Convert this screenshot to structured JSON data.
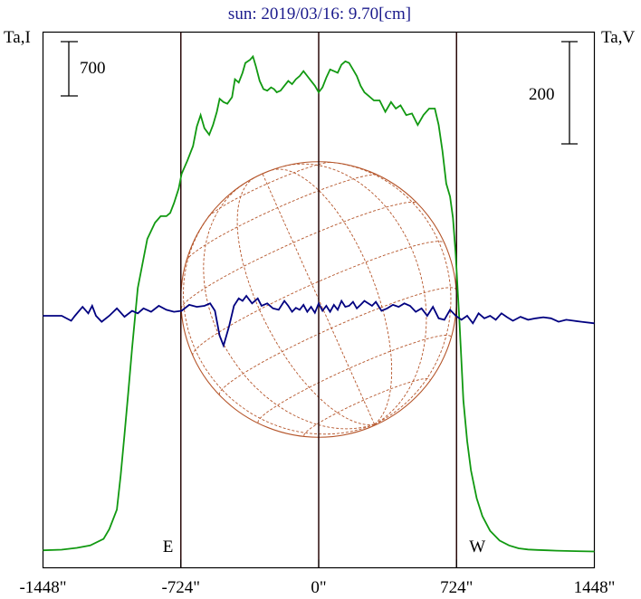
{
  "chart_data": {
    "type": "line",
    "title": "sun: 2019/03/16: 9.70[cm]",
    "y_left_label": "Ta,I",
    "y_right_label": "Ta,V",
    "scale_bar_left": "700",
    "scale_bar_right": "200",
    "x_ticks": [
      {
        "value": -1448,
        "label": "-1448\""
      },
      {
        "value": -724,
        "label": "-724\""
      },
      {
        "value": 0,
        "label": "0\""
      },
      {
        "value": 724,
        "label": "724\""
      },
      {
        "value": 1448,
        "label": "1448\""
      }
    ],
    "xlim": [
      -1448,
      1448
    ],
    "limb_markers": [
      {
        "x": -724,
        "label": "E"
      },
      {
        "x": 724,
        "label": "W"
      }
    ],
    "solar_disk": {
      "center": [
        0,
        0
      ],
      "radius_arcsec": 724
    },
    "series": [
      {
        "color": "#119911",
        "x": [
          -1448,
          -1350,
          -1270,
          -1200,
          -1130,
          -1100,
          -1060,
          -1040,
          -1020,
          -1000,
          -980,
          -950,
          -900,
          -860,
          -830,
          -800,
          -780,
          -760,
          -735,
          -720,
          -690,
          -660,
          -640,
          -620,
          -600,
          -575,
          -555,
          -535,
          -520,
          -500,
          -480,
          -455,
          -440,
          -420,
          -400,
          -385,
          -360,
          -345,
          -330,
          -310,
          -290,
          -270,
          -250,
          -235,
          -220,
          -200,
          -180,
          -160,
          -140,
          -120,
          -100,
          -80,
          -60,
          -40,
          -20,
          0,
          20,
          40,
          60,
          80,
          100,
          120,
          140,
          160,
          180,
          200,
          220,
          240,
          260,
          290,
          320,
          350,
          380,
          405,
          430,
          460,
          490,
          520,
          550,
          580,
          610,
          630,
          650,
          670,
          690,
          705,
          720,
          740,
          760,
          780,
          800,
          830,
          860,
          900,
          950,
          1000,
          1050,
          1100,
          1150,
          1200,
          1250,
          1300,
          1350,
          1448
        ],
        "values": [
          10,
          14,
          25,
          40,
          80,
          140,
          260,
          470,
          720,
          980,
          1250,
          1620,
          1920,
          2020,
          2060,
          2060,
          2080,
          2140,
          2230,
          2320,
          2400,
          2490,
          2610,
          2680,
          2600,
          2560,
          2620,
          2700,
          2780,
          2760,
          2750,
          2790,
          2900,
          2880,
          2940,
          3000,
          3020,
          3040,
          2980,
          2890,
          2840,
          2830,
          2850,
          2840,
          2820,
          2830,
          2860,
          2890,
          2870,
          2900,
          2920,
          2950,
          2920,
          2890,
          2860,
          2820,
          2850,
          2910,
          2960,
          2950,
          2940,
          2990,
          3010,
          3000,
          2960,
          2920,
          2860,
          2820,
          2800,
          2770,
          2770,
          2700,
          2760,
          2720,
          2740,
          2680,
          2690,
          2620,
          2680,
          2720,
          2720,
          2620,
          2460,
          2260,
          2180,
          2050,
          1820,
          1400,
          930,
          680,
          500,
          330,
          220,
          130,
          70,
          40,
          22,
          15,
          12,
          10,
          8,
          6,
          5,
          3
        ]
      },
      {
        "color": "#000080",
        "x": [
          -1448,
          -1350,
          -1300,
          -1280,
          -1240,
          -1210,
          -1190,
          -1170,
          -1140,
          -1100,
          -1060,
          -1020,
          -980,
          -950,
          -920,
          -880,
          -840,
          -800,
          -760,
          -720,
          -680,
          -640,
          -600,
          -570,
          -545,
          -520,
          -500,
          -470,
          -445,
          -420,
          -400,
          -380,
          -350,
          -320,
          -300,
          -270,
          -240,
          -210,
          -180,
          -160,
          -140,
          -120,
          -100,
          -80,
          -60,
          -40,
          -20,
          0,
          20,
          40,
          60,
          80,
          100,
          120,
          140,
          160,
          180,
          200,
          220,
          240,
          260,
          280,
          300,
          330,
          360,
          390,
          420,
          450,
          480,
          510,
          540,
          570,
          600,
          630,
          660,
          690,
          720,
          750,
          780,
          810,
          840,
          870,
          900,
          930,
          960,
          990,
          1020,
          1060,
          1100,
          1140,
          1180,
          1220,
          1260,
          1300,
          1340,
          1380,
          1448
        ],
        "values": [
          0,
          0,
          -10,
          0,
          18,
          5,
          20,
          0,
          -12,
          0,
          15,
          -2,
          10,
          5,
          15,
          8,
          20,
          12,
          8,
          10,
          22,
          18,
          20,
          25,
          10,
          -40,
          -60,
          -20,
          20,
          35,
          30,
          40,
          25,
          35,
          20,
          25,
          15,
          12,
          30,
          20,
          8,
          16,
          12,
          22,
          8,
          18,
          6,
          25,
          10,
          20,
          8,
          22,
          12,
          30,
          18,
          20,
          28,
          15,
          22,
          30,
          25,
          20,
          28,
          10,
          15,
          22,
          18,
          25,
          20,
          8,
          15,
          0,
          18,
          -5,
          -8,
          12,
          0,
          -8,
          0,
          -15,
          5,
          -5,
          0,
          -8,
          5,
          -3,
          -10,
          -2,
          -8,
          -5,
          -3,
          -5,
          -12,
          -8,
          -10,
          -12,
          -15
        ]
      }
    ]
  }
}
